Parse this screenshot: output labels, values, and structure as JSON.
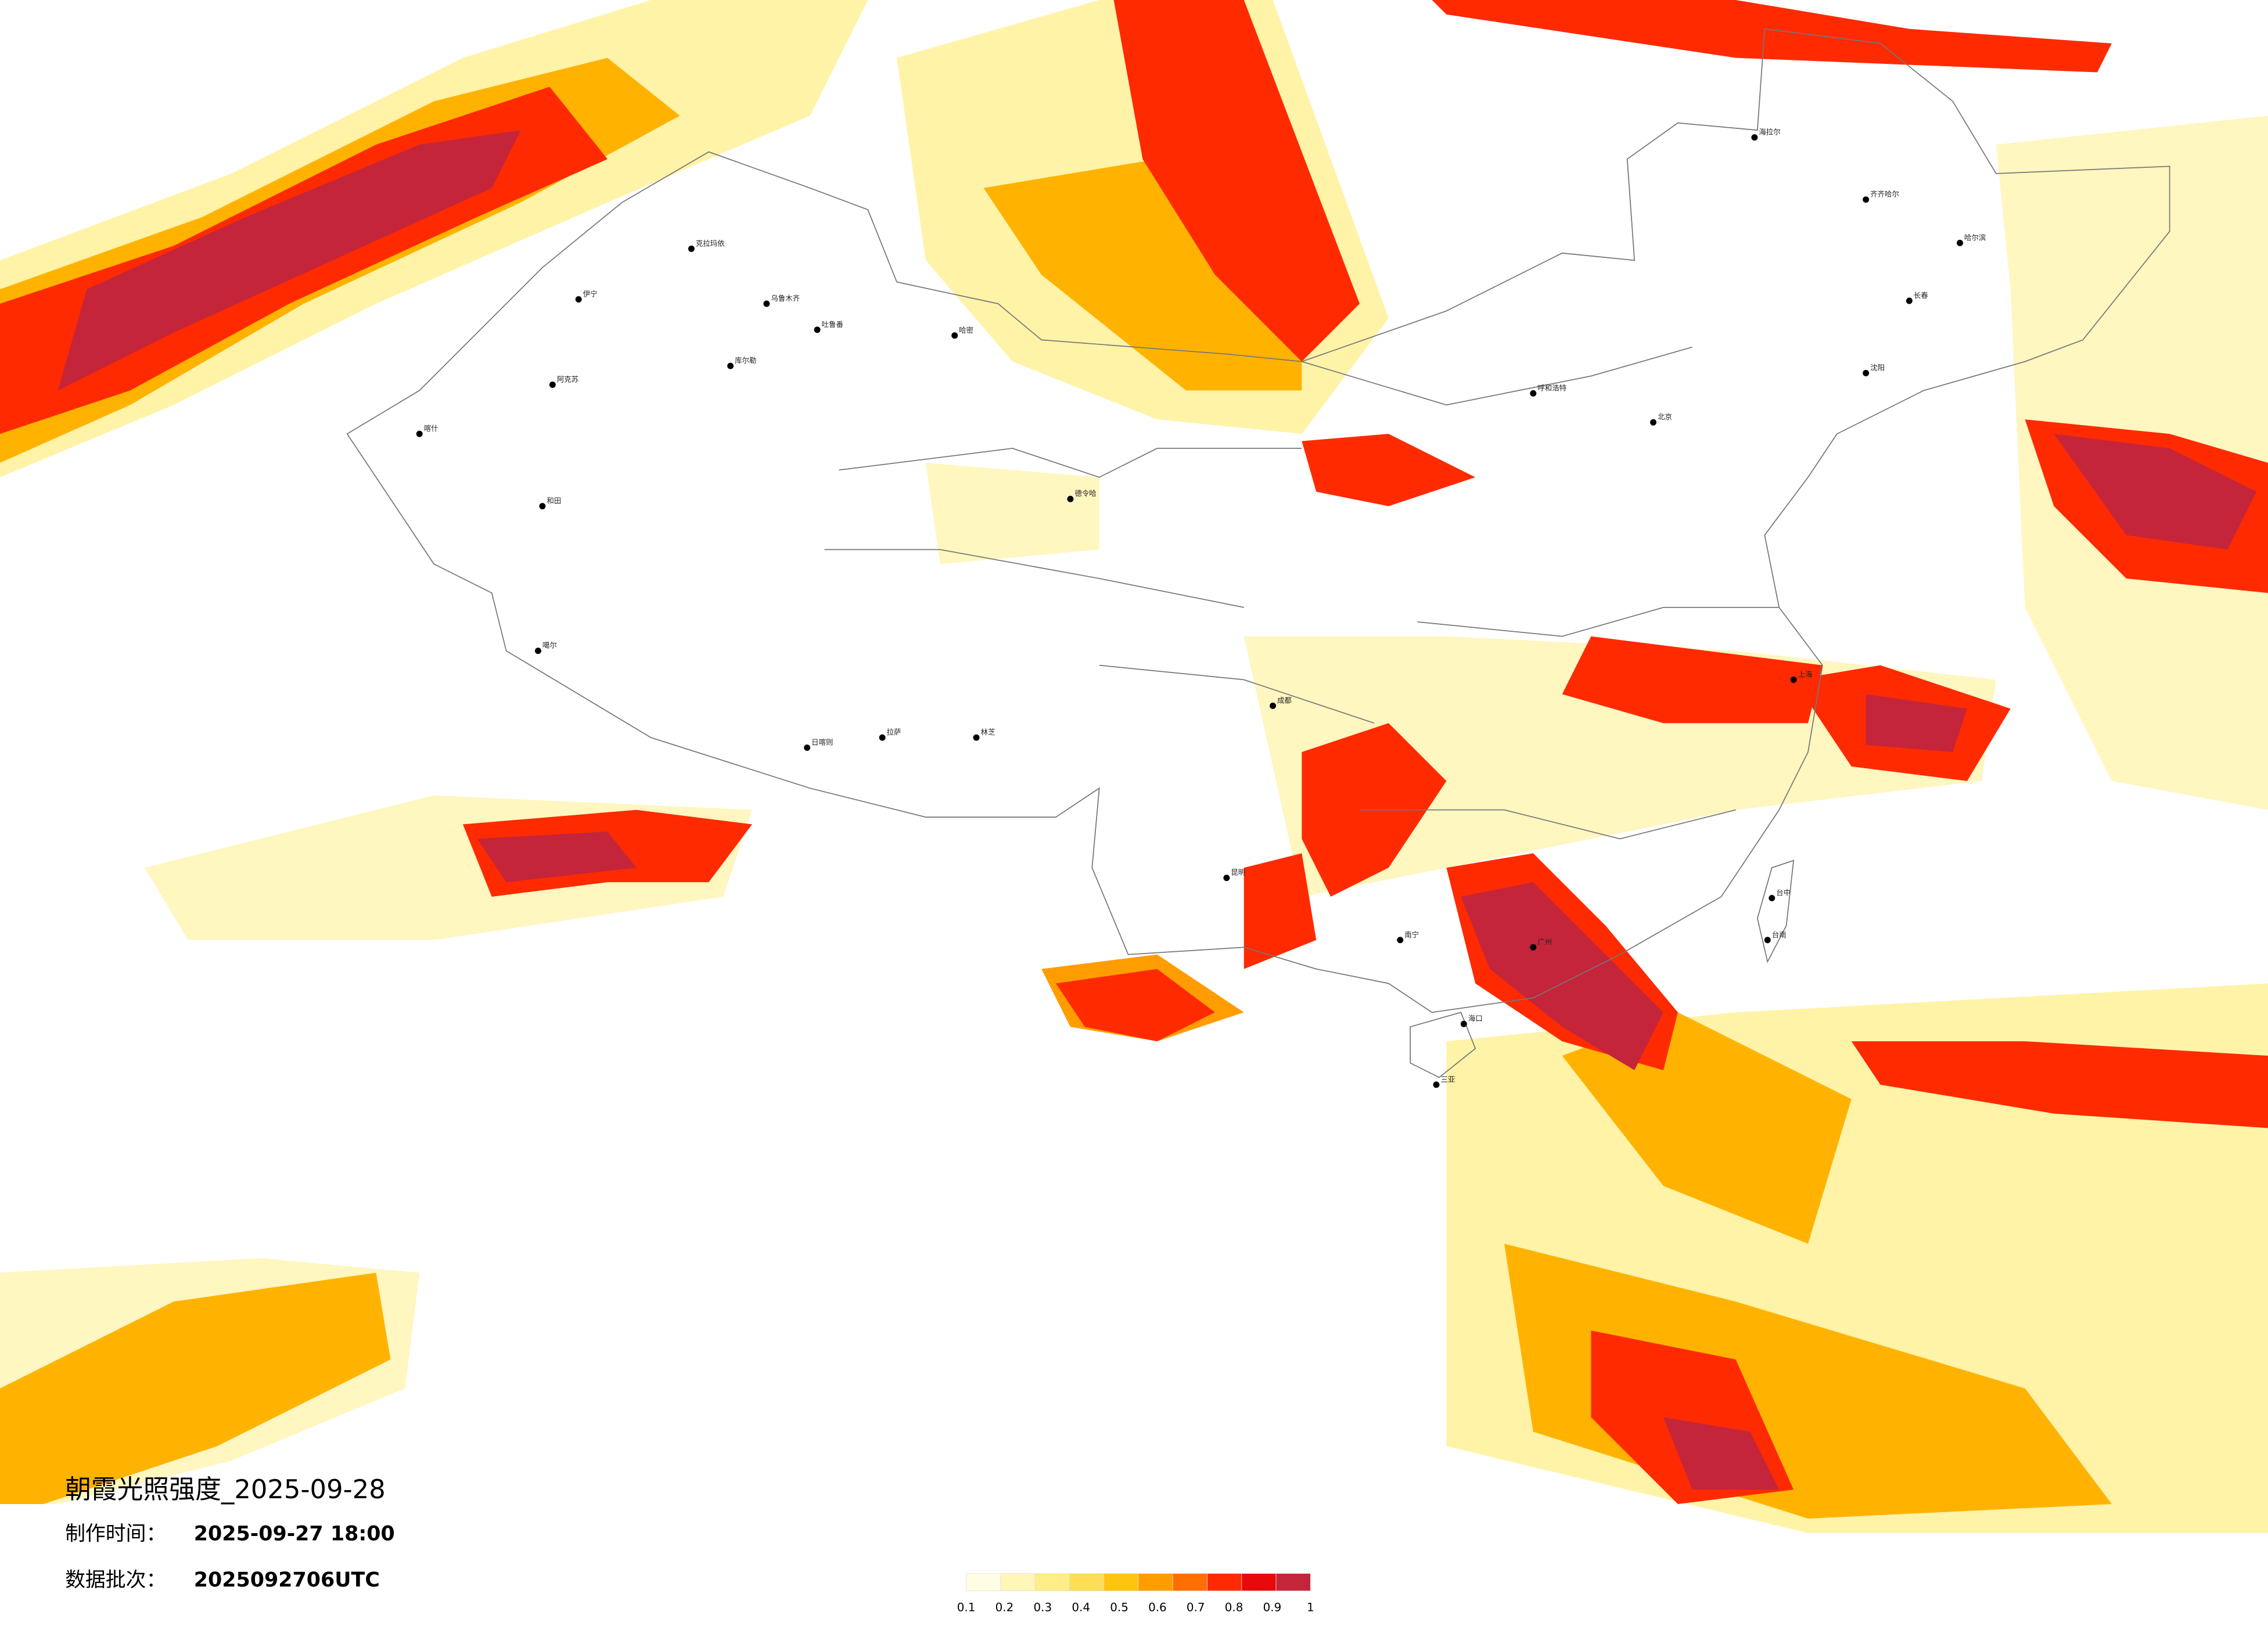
{
  "title": "朝霞光照强度_2025-09-28",
  "info": [
    {
      "label": "制作时间：",
      "value": "2025-09-27 18:00"
    },
    {
      "label": "数据批次：",
      "value": "2025092706UTC"
    }
  ],
  "legend": {
    "colors": [
      "#fffde3",
      "#fff6b8",
      "#ffee85",
      "#ffdd55",
      "#ffc410",
      "#ff9d00",
      "#ff6e00",
      "#ff2a00",
      "#e80a0a",
      "#c4253a"
    ],
    "ticks": [
      0.1,
      0.2,
      0.3,
      0.4,
      0.5,
      0.6,
      0.7,
      0.8,
      0.9,
      1
    ]
  },
  "cities": [
    "克拉玛依",
    "乌鲁木齐",
    "伊宁",
    "阿克苏",
    "喀什",
    "和田",
    "库尔勒",
    "吐鲁番",
    "哈密",
    "噶尔",
    "日喀则",
    "拉萨",
    "林芝",
    "德令哈",
    "海拉尔",
    "齐齐哈尔",
    "哈尔滨",
    "长春",
    "沈阳",
    "呼和浩特",
    "北京",
    "上海",
    "成都",
    "昆明",
    "南宁",
    "广州",
    "海口",
    "三亚",
    "台中",
    "台南"
  ]
}
